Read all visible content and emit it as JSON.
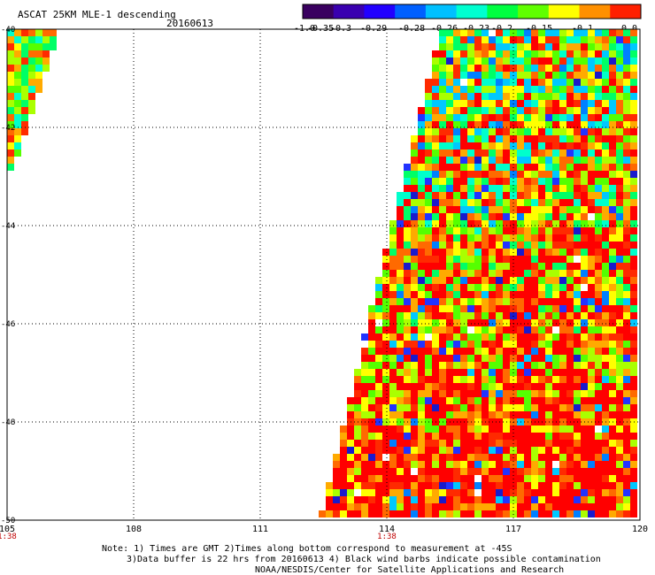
{
  "header": {
    "title": "ASCAT 25KM MLE-1 descending",
    "date": "20160613"
  },
  "colorbar": {
    "tick_labels": [
      "-1.0",
      "-0.35",
      "-0.3",
      "-0.29",
      "-0.28",
      "-0.26",
      "-0.23",
      "-0.2",
      "-0.15",
      "-0.1",
      "0.0"
    ],
    "colors": [
      "#3a0060",
      "#3a00b0",
      "#2200ff",
      "#0060ff",
      "#00c0ff",
      "#00ffd0",
      "#00ff40",
      "#60ff00",
      "#ffff00",
      "#ff9000",
      "#ff2000"
    ]
  },
  "map": {
    "lon_ticks": [
      "105",
      "108",
      "111",
      "114",
      "117",
      "120"
    ],
    "lat_ticks": [
      "-40",
      "-42",
      "-44",
      "-46",
      "-48",
      "-50"
    ],
    "lon_range": [
      105,
      120
    ],
    "lat_range": [
      -40,
      -50
    ],
    "time_labels": [
      {
        "lon": 105,
        "text": "1:38"
      },
      {
        "lon": 114,
        "text": "1:38"
      }
    ],
    "time_color": "#c00000",
    "grid": "dotted"
  },
  "swath": {
    "description_values": "MLE-1 values range from about -0.35 (blue) to 0.0 (red)",
    "left_fragment_value_bias": 0.0,
    "right_swath_north_bias": -0.22,
    "right_swath_south_bias": -0.05
  },
  "footer": {
    "line1": "Note: 1) Times are GMT 2)Times along bottom correspond to measurement at -45S",
    "line2": "3)Data buffer is 22 hrs from 20160613 4) Black wind barbs indicate possible contamination",
    "line3": "NOAA/NESDIS/Center for Satellite Applications and Research"
  }
}
